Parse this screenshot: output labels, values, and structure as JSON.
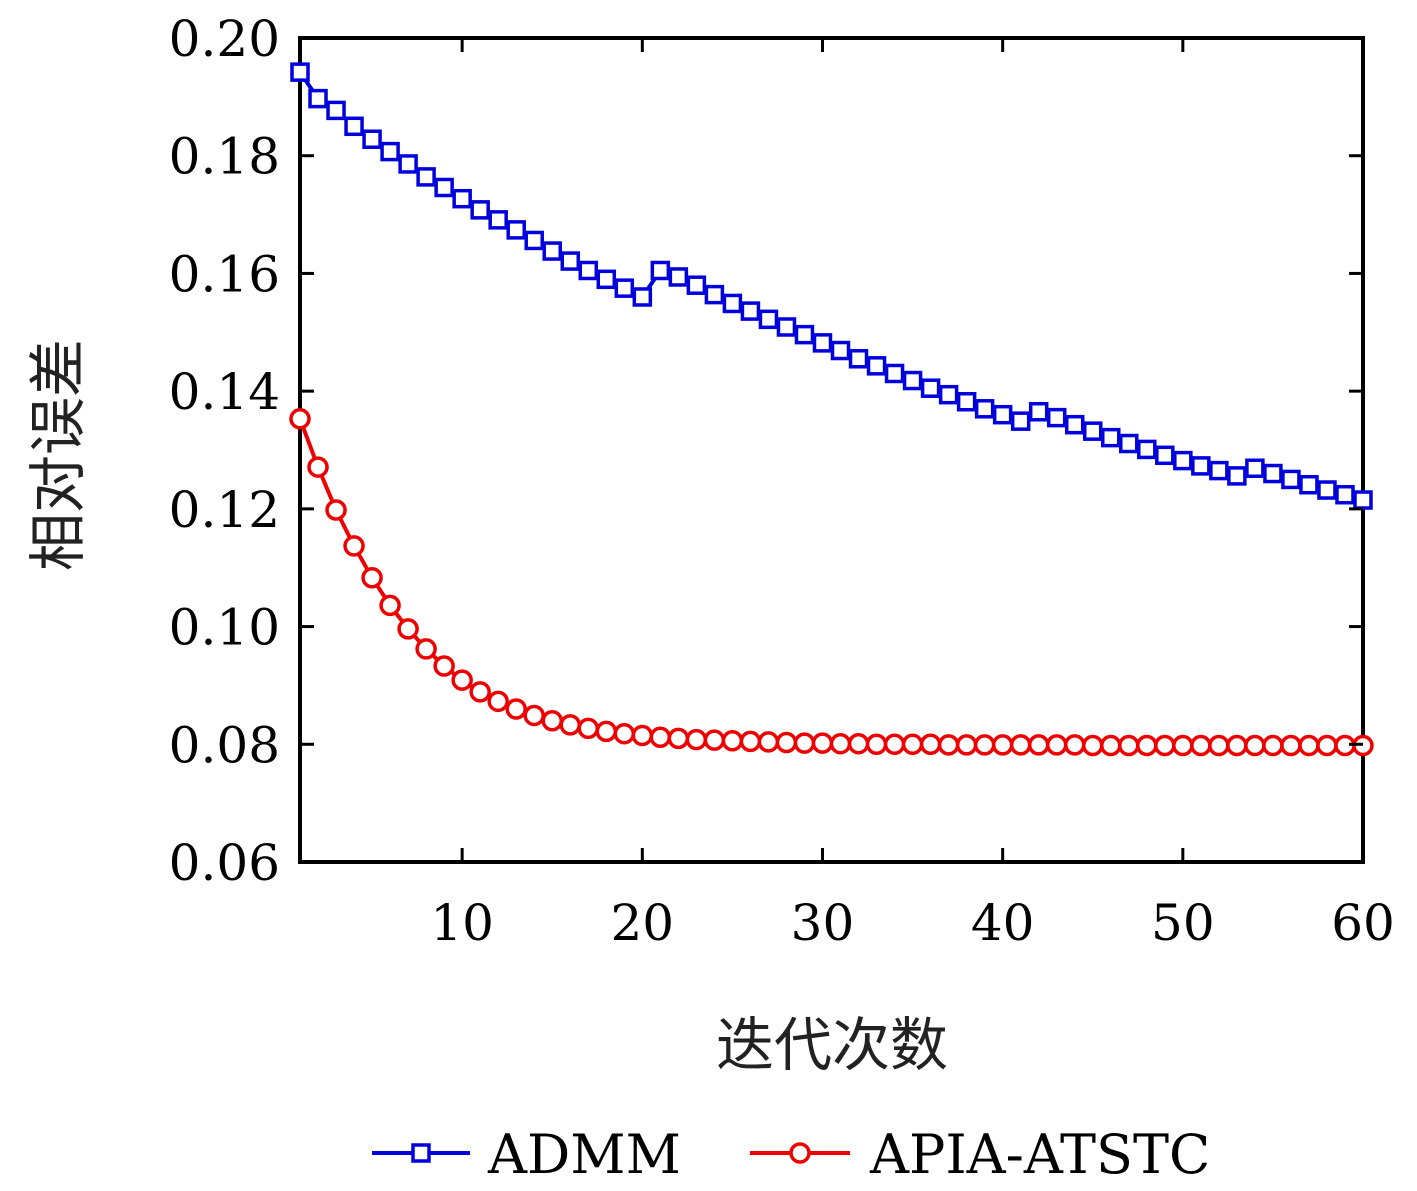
{
  "chart_data": {
    "type": "line",
    "title": "",
    "xlabel": "迭代次数",
    "ylabel": "相对误差",
    "xlim": [
      1,
      60
    ],
    "ylim": [
      0.06,
      0.2
    ],
    "xticks": [
      10,
      20,
      30,
      40,
      50,
      60
    ],
    "xtick_labels": [
      "10",
      "20",
      "30",
      "40",
      "50",
      "60"
    ],
    "yticks": [
      0.06,
      0.08,
      0.1,
      0.12,
      0.14,
      0.16,
      0.18,
      0.2
    ],
    "ytick_labels": [
      "0.06",
      "0.08",
      "0.10",
      "0.12",
      "0.14",
      "0.16",
      "0.18",
      "0.20"
    ],
    "grid": false,
    "legend_position": "bottom",
    "x": [
      1,
      2,
      3,
      4,
      5,
      6,
      7,
      8,
      9,
      10,
      11,
      12,
      13,
      14,
      15,
      16,
      17,
      18,
      19,
      20,
      21,
      22,
      23,
      24,
      25,
      26,
      27,
      28,
      29,
      30,
      31,
      32,
      33,
      34,
      35,
      36,
      37,
      38,
      39,
      40,
      41,
      42,
      43,
      44,
      45,
      46,
      47,
      48,
      49,
      50,
      51,
      52,
      53,
      54,
      55,
      56,
      57,
      58,
      59,
      60
    ],
    "series": [
      {
        "name": "ADMM",
        "color": "#0000dd",
        "marker": "square",
        "values": [
          0.1942,
          0.1897,
          0.1877,
          0.185,
          0.1828,
          0.1807,
          0.1786,
          0.1764,
          0.1746,
          0.1727,
          0.1708,
          0.1691,
          0.1674,
          0.1656,
          0.1638,
          0.1621,
          0.1605,
          0.159,
          0.1575,
          0.156,
          0.1605,
          0.1594,
          0.158,
          0.1564,
          0.1549,
          0.1536,
          0.1522,
          0.1509,
          0.1496,
          0.1482,
          0.1469,
          0.1455,
          0.1443,
          0.143,
          0.1418,
          0.1405,
          0.1394,
          0.1382,
          0.137,
          0.136,
          0.1349,
          0.1365,
          0.1355,
          0.1343,
          0.1332,
          0.1321,
          0.1311,
          0.1301,
          0.1291,
          0.1282,
          0.1273,
          0.1265,
          0.1256,
          0.1269,
          0.126,
          0.125,
          0.1241,
          0.1232,
          0.1224,
          0.1215
        ]
      },
      {
        "name": "APIA-ATSTC",
        "color": "#ee0000",
        "marker": "circle",
        "values": [
          0.1353,
          0.1271,
          0.1198,
          0.1137,
          0.1083,
          0.1036,
          0.0996,
          0.0962,
          0.0933,
          0.0909,
          0.0889,
          0.0873,
          0.086,
          0.0849,
          0.084,
          0.0833,
          0.0827,
          0.0822,
          0.0818,
          0.0815,
          0.0812,
          0.081,
          0.0808,
          0.0807,
          0.0806,
          0.0805,
          0.0804,
          0.0803,
          0.0802,
          0.0802,
          0.0801,
          0.0801,
          0.08,
          0.08,
          0.08,
          0.08,
          0.0799,
          0.0799,
          0.0799,
          0.0799,
          0.0799,
          0.0799,
          0.0799,
          0.0799,
          0.0798,
          0.0798,
          0.0798,
          0.0798,
          0.0798,
          0.0798,
          0.0798,
          0.0798,
          0.0798,
          0.0798,
          0.0798,
          0.0798,
          0.0798,
          0.0798,
          0.0798,
          0.0798
        ]
      }
    ]
  }
}
